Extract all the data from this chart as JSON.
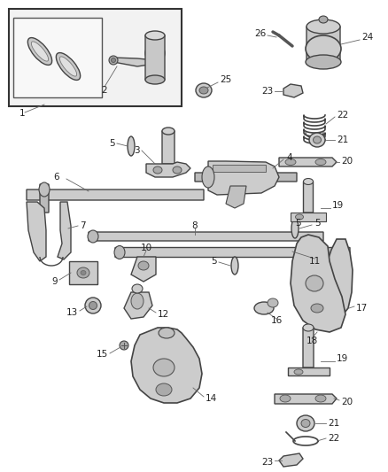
{
  "bg_color": "#ffffff",
  "fig_width": 4.38,
  "fig_height": 5.33,
  "dpi": 100,
  "line_color": "#444444",
  "part_fill": "#d8d8d8",
  "part_fill_dark": "#b0b0b0",
  "label_color": "#222222",
  "label_size": 7.5
}
